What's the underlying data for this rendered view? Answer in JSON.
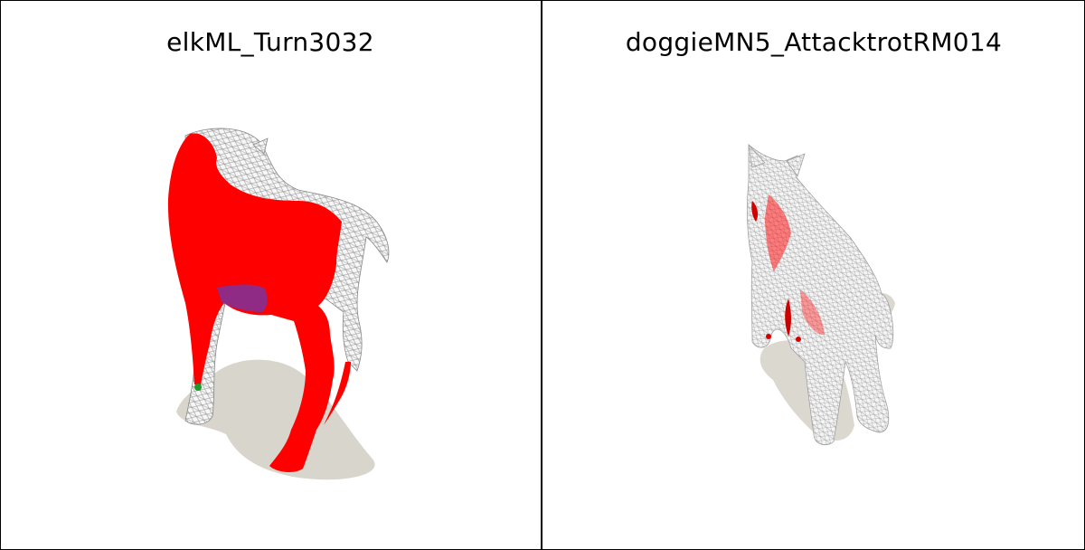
{
  "panels": [
    {
      "title": "elkML_Turn3032",
      "highlight_color": "#ff0000",
      "mesh_color": "#dcdcdc",
      "shadow_color": "#d8d5cc"
    },
    {
      "title": "doggieMN5_AttacktrotRM014",
      "highlight_color": "#ff0000",
      "mesh_color": "#e2e2e2",
      "shadow_color": "#dbd8cf"
    }
  ]
}
